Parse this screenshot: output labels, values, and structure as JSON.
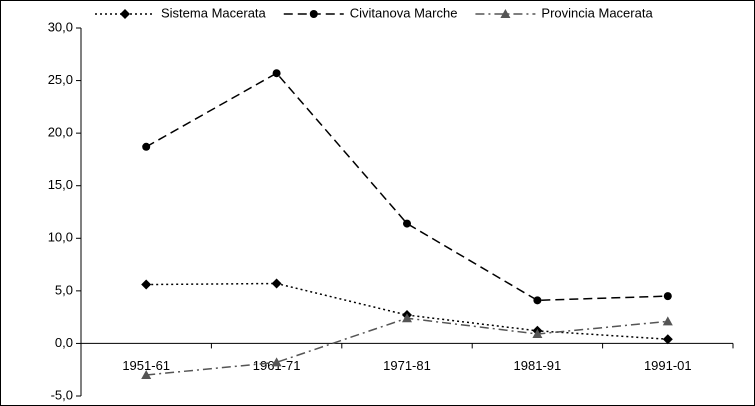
{
  "chart_data": {
    "type": "line",
    "categories": [
      "1951-61",
      "1961-71",
      "1971-81",
      "1981-91",
      "1991-01"
    ],
    "series": [
      {
        "name": "Sistema Macerata",
        "color": "#000000",
        "marker": "diamond",
        "dash": "dotted",
        "values": [
          5.6,
          5.7,
          2.7,
          1.2,
          0.4
        ]
      },
      {
        "name": "Civitanova Marche",
        "color": "#000000",
        "marker": "circle",
        "dash": "dashed",
        "values": [
          18.7,
          25.7,
          11.4,
          4.1,
          4.5
        ]
      },
      {
        "name": "Provincia Macerata",
        "color": "#555555",
        "marker": "triangle",
        "dash": "dashdot",
        "values": [
          -3.0,
          -1.8,
          2.4,
          0.9,
          2.1
        ]
      }
    ],
    "ylim": [
      -5,
      30
    ],
    "yticks": [
      {
        "value": -5,
        "label": "-5,0"
      },
      {
        "value": 0,
        "label": "0,0"
      },
      {
        "value": 5,
        "label": "5,0"
      },
      {
        "value": 10,
        "label": "10,0"
      },
      {
        "value": 15,
        "label": "15,0"
      },
      {
        "value": 20,
        "label": "20,0"
      },
      {
        "value": 25,
        "label": "25,0"
      },
      {
        "value": 30,
        "label": "30,0"
      }
    ],
    "legend": "top"
  }
}
